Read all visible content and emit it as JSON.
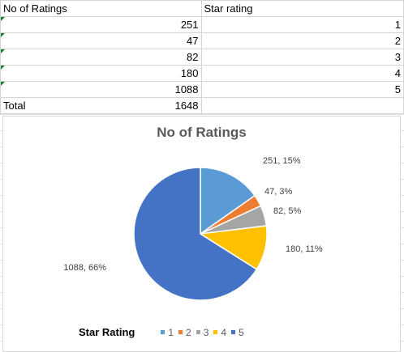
{
  "table": {
    "headers": [
      "No of Ratings",
      "Star rating"
    ],
    "rows": [
      {
        "ratings": "251",
        "star": "1"
      },
      {
        "ratings": "47",
        "star": "2"
      },
      {
        "ratings": "82",
        "star": "3"
      },
      {
        "ratings": "180",
        "star": "4"
      },
      {
        "ratings": "1088",
        "star": "5"
      }
    ],
    "total_label": "Total",
    "total_value": "1648"
  },
  "chart_data": {
    "type": "pie",
    "title": "No of Ratings",
    "categories": [
      "1",
      "2",
      "3",
      "4",
      "5"
    ],
    "values": [
      251,
      47,
      82,
      180,
      1088
    ],
    "labels": [
      "251, 15%",
      "47, 3%",
      "82, 5%",
      "180, 11%",
      "1088, 66%"
    ],
    "colors": [
      "#5b9bd5",
      "#ed7d31",
      "#a5a5a5",
      "#ffc000",
      "#4472c4"
    ],
    "legend_title": "Star Rating",
    "legend_position": "bottom"
  }
}
